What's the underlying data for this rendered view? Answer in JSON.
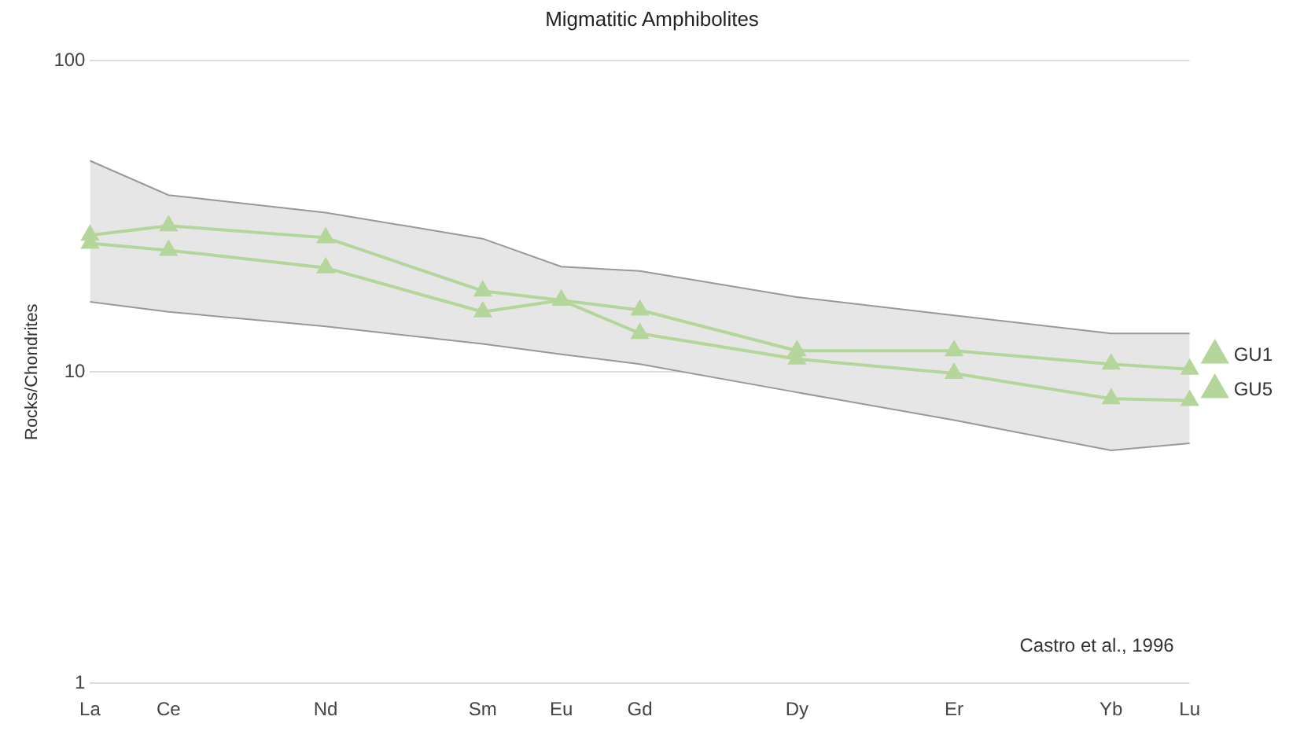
{
  "chart_data": {
    "type": "line",
    "title": "Migmatitic Amphibolites",
    "ylabel": "Rocks/Chondrites",
    "categories": [
      "La",
      "Ce",
      null,
      "Nd",
      null,
      "Sm",
      "Eu",
      "Gd",
      null,
      "Dy",
      null,
      "Er",
      null,
      "Yb",
      "Lu"
    ],
    "series": [
      {
        "type": "area",
        "color": "#e6e6e6",
        "marker": "none",
        "values": [
          47.7,
          37,
          null,
          32.5,
          null,
          26.8,
          21.8,
          21.1,
          null,
          17.4,
          null,
          15.2,
          null,
          13.3,
          13.3
        ]
      },
      {
        "type": "line",
        "color": "#999999",
        "marker": "none",
        "values": [
          16.8,
          15.6,
          null,
          14,
          null,
          12.3,
          11.4,
          10.6,
          null,
          8.6,
          null,
          7,
          null,
          5.6,
          5.9
        ]
      },
      {
        "name": "GU1",
        "color": "#b5d69a",
        "values": [
          27.5,
          29.5,
          null,
          27,
          null,
          18.2,
          17,
          15.8,
          null,
          11.7,
          null,
          11.7,
          null,
          10.6,
          10.2
        ]
      },
      {
        "name": "GU5",
        "color": "#b5d69a",
        "values": [
          25.9,
          24.6,
          null,
          21.6,
          null,
          15.6,
          17,
          13.3,
          null,
          11,
          null,
          9.9,
          null,
          8.2,
          8.1
        ]
      }
    ],
    "log": "y",
    "ylim": [
      1,
      100
    ],
    "yticks": [
      1,
      10,
      100
    ],
    "grid": "y",
    "legend": "right",
    "marker": "triangle",
    "line_style": "solid",
    "annotations": [
      "Castro et al., 1996"
    ]
  }
}
